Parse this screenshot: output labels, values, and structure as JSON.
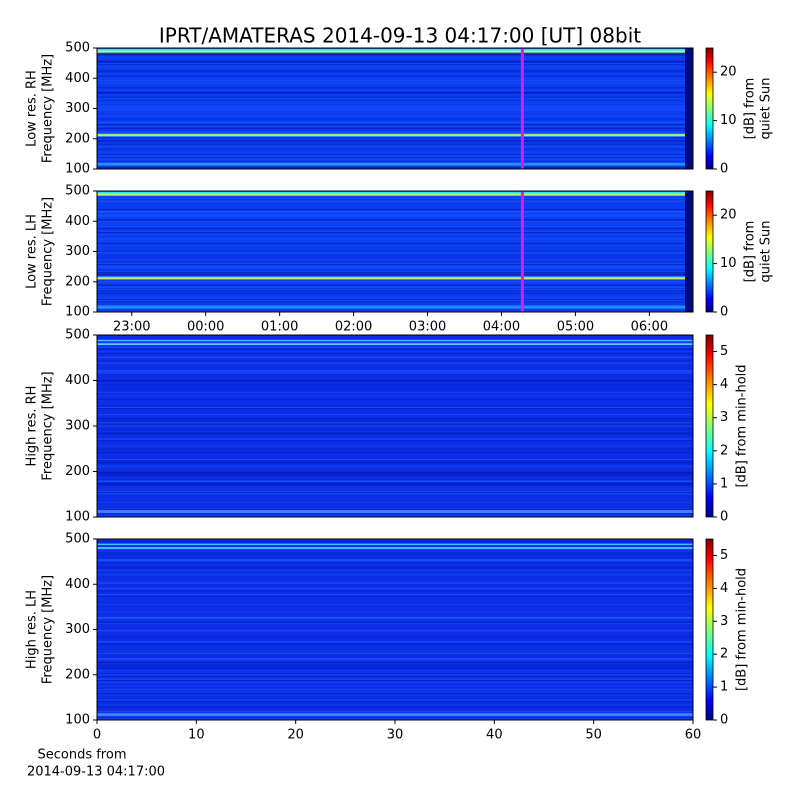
{
  "chart_data": [
    {
      "type": "heatmap",
      "title": "IPRT/AMATERAS 2014-09-13 04:17:00 [UT]   08bit",
      "ylabel": [
        "Low res. RH",
        "Frequency [MHz]"
      ],
      "ylim": [
        100,
        500
      ],
      "yticks": [
        100,
        200,
        300,
        400,
        500
      ],
      "xlim": [
        22.53,
        30.59
      ],
      "vline": 28.283,
      "colorbar_label": [
        "[dB] from",
        "quiet Sun"
      ],
      "clim": [
        0,
        25
      ],
      "cticks": [
        0,
        10,
        20
      ]
    },
    {
      "type": "heatmap",
      "ylabel": [
        "Low res. LH",
        "Frequency [MHz]"
      ],
      "ylim": [
        100,
        500
      ],
      "yticks": [
        100,
        200,
        300,
        400,
        500
      ],
      "xlim": [
        22.53,
        30.59
      ],
      "vline": 28.283,
      "xticks": [
        {
          "value": 23,
          "label": "23:00"
        },
        {
          "value": 24,
          "label": "00:00"
        },
        {
          "value": 25,
          "label": "01:00"
        },
        {
          "value": 26,
          "label": "02:00"
        },
        {
          "value": 27,
          "label": "03:00"
        },
        {
          "value": 28,
          "label": "04:00"
        },
        {
          "value": 29,
          "label": "05:00"
        },
        {
          "value": 30,
          "label": "06:00"
        }
      ],
      "colorbar_label": [
        "[dB] from",
        "quiet Sun"
      ],
      "clim": [
        0,
        25
      ],
      "cticks": [
        0,
        10,
        20
      ]
    },
    {
      "type": "heatmap",
      "ylabel": [
        "High res. RH",
        "Frequency [MHz]"
      ],
      "ylim": [
        100,
        500
      ],
      "yticks": [
        100,
        200,
        300,
        400,
        500
      ],
      "xlim": [
        0,
        60
      ],
      "colorbar_label": [
        "[dB] from min-hold"
      ],
      "clim": [
        0,
        5.5
      ],
      "cticks": [
        0,
        1,
        2,
        3,
        4,
        5
      ]
    },
    {
      "type": "heatmap",
      "ylabel": [
        "High res. LH",
        "Frequency [MHz]"
      ],
      "ylim": [
        100,
        500
      ],
      "yticks": [
        100,
        200,
        300,
        400,
        500
      ],
      "xlim": [
        0,
        60
      ],
      "xticks": [
        0,
        10,
        20,
        30,
        40,
        50,
        60
      ],
      "xlabel": [
        "Seconds from",
        "2014-09-13 04:17:00"
      ],
      "colorbar_label": [
        "[dB] from min-hold"
      ],
      "clim": [
        0,
        5.5
      ],
      "cticks": [
        0,
        1,
        2,
        3,
        4,
        5
      ]
    }
  ]
}
